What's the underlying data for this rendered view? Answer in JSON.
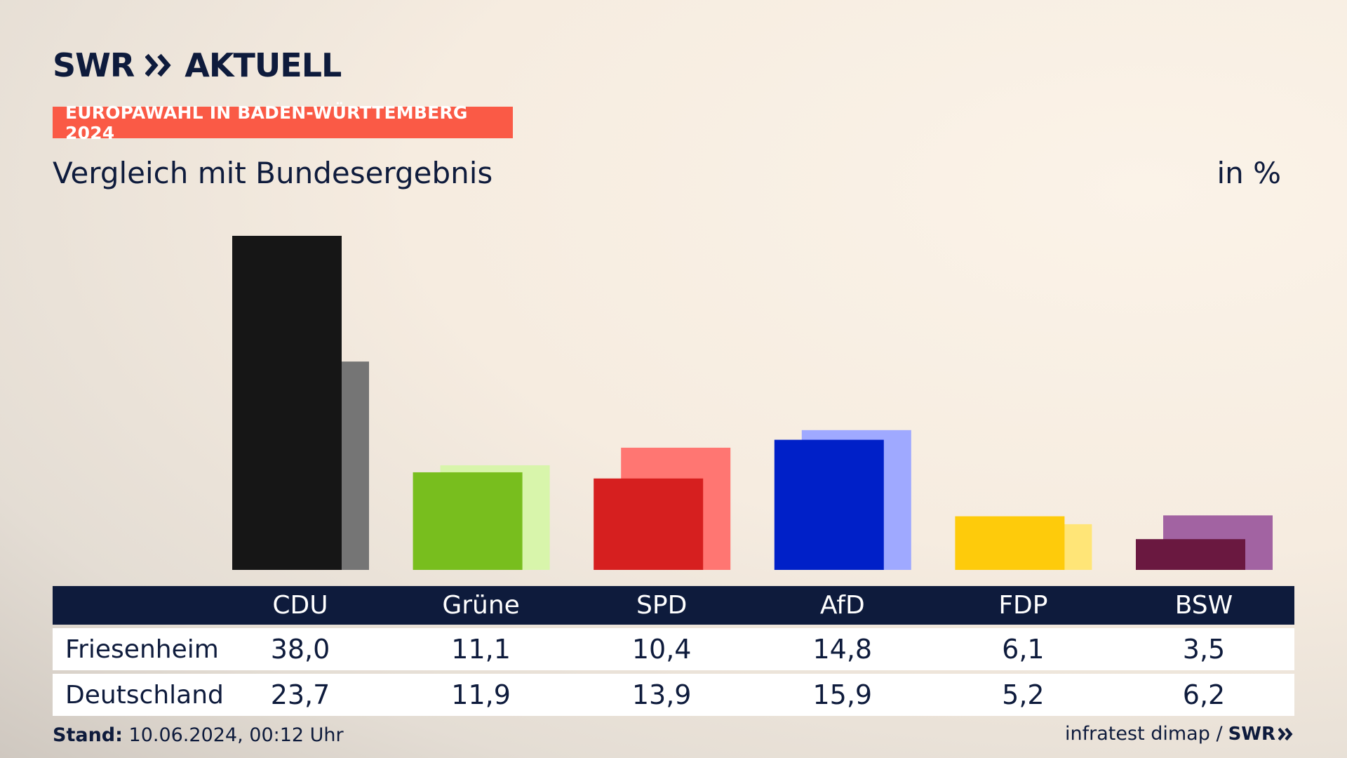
{
  "brand": {
    "name": "SWR",
    "product": "AKTUELL",
    "footer_logo": "SWR"
  },
  "badge": "EUROPAWAHL IN BADEN-WÜRTTEMBERG 2024",
  "subtitle": "Vergleich mit Bundesergebnis",
  "unit": "in %",
  "footer": {
    "stand_label": "Stand:",
    "stand_value": "10.06.2024, 00:12 Uhr",
    "source": "infratest dimap /"
  },
  "chart_data": {
    "type": "bar",
    "categories": [
      "CDU",
      "Grüne",
      "SPD",
      "AfD",
      "FDP",
      "BSW"
    ],
    "series": [
      {
        "name": "Friesenheim",
        "values": [
          38.0,
          11.1,
          10.4,
          14.8,
          6.1,
          3.5
        ],
        "display": [
          "38,0",
          "11,1",
          "10,4",
          "14,8",
          "6,1",
          "3,5"
        ],
        "colors": [
          "#161616",
          "#78be1e",
          "#d61f1f",
          "#0020c8",
          "#fecb0b",
          "#6a1840"
        ]
      },
      {
        "name": "Deutschland",
        "values": [
          23.7,
          11.9,
          13.9,
          15.9,
          5.2,
          6.2
        ],
        "display": [
          "23,7",
          "11,9",
          "13,9",
          "15,9",
          "5,2",
          "6,2"
        ],
        "colors": [
          "#757575",
          "#d8f5ab",
          "#ff7672",
          "#9fa9ff",
          "#ffe577",
          "#a263a2"
        ]
      }
    ],
    "ylim": [
      0,
      38.0
    ]
  }
}
